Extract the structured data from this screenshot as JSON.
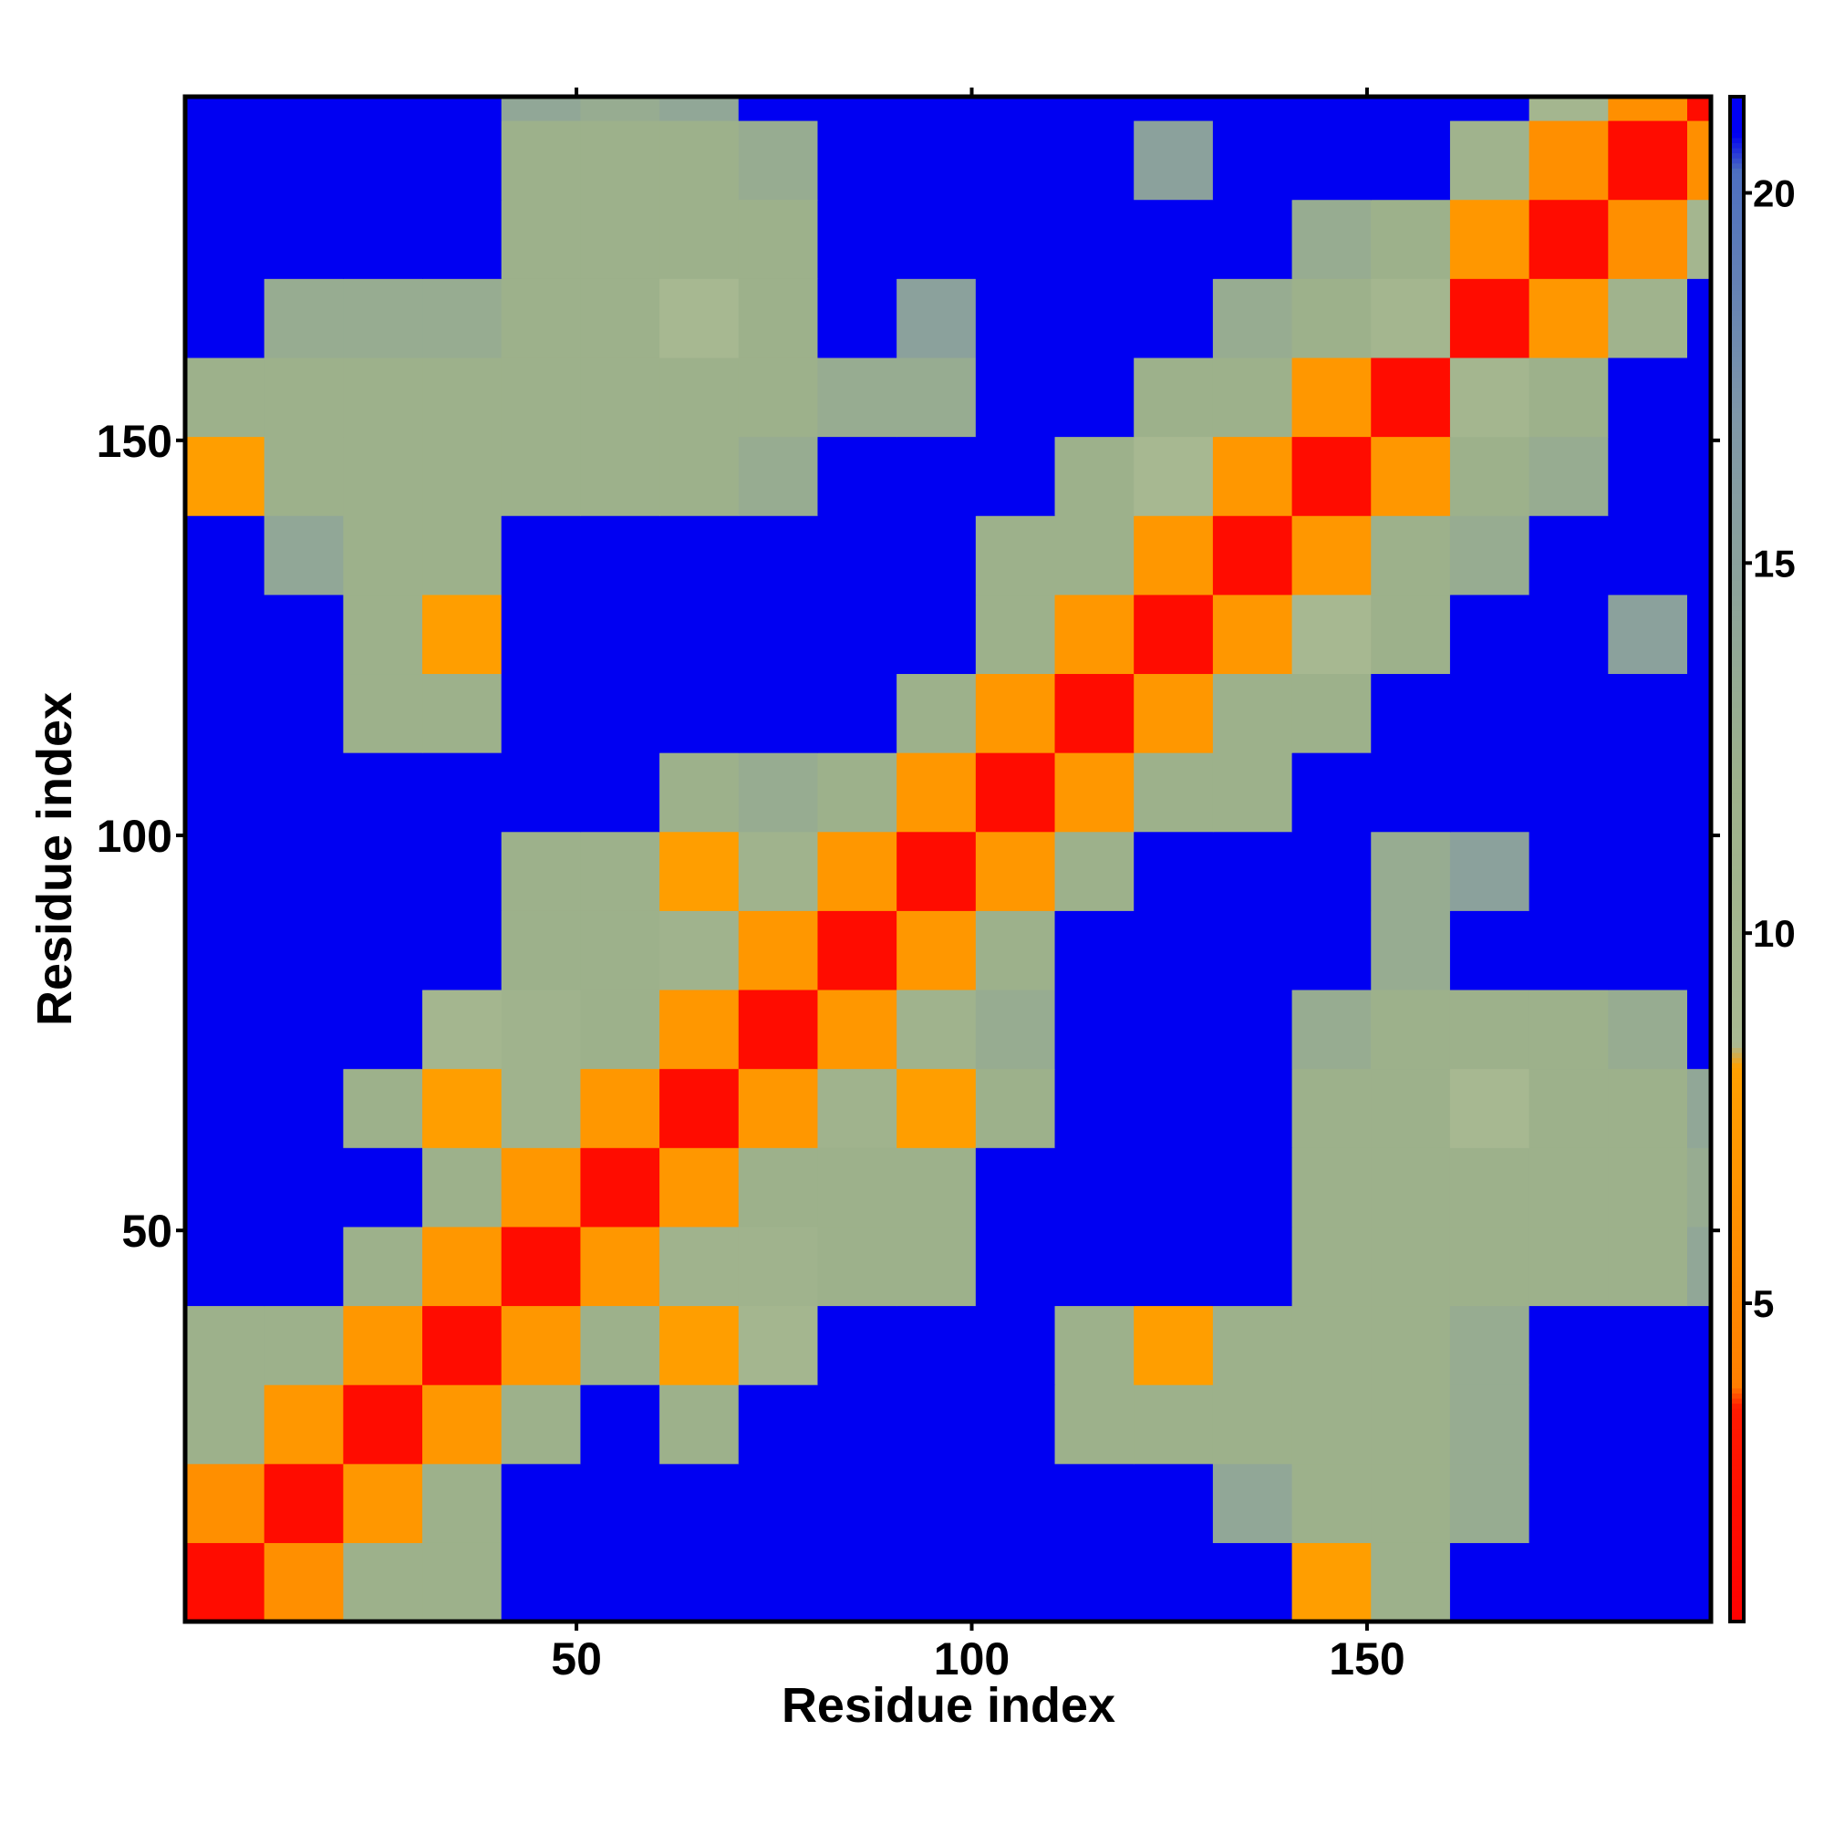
{
  "chart_data": {
    "type": "heatmap",
    "x_title": "Residue index",
    "y_title": "Residue index",
    "x_edges": [
      0.5,
      10.5,
      20.5,
      30.5,
      40.5,
      50.5,
      60.5,
      70.5,
      80.5,
      90.5,
      100.5,
      110.5,
      120.5,
      130.5,
      140.5,
      150.5,
      160.5,
      170.5,
      180.5,
      190.5,
      193.5
    ],
    "y_edges": [
      0.5,
      10.5,
      20.5,
      30.5,
      40.5,
      50.5,
      60.5,
      70.5,
      80.5,
      90.5,
      100.5,
      110.5,
      120.5,
      130.5,
      140.5,
      150.5,
      160.5,
      170.5,
      180.5,
      190.5,
      193.5
    ],
    "z": [
      [
        2,
        6,
        12,
        12,
        21,
        21,
        21,
        21,
        21,
        21,
        21,
        21,
        21,
        21,
        8,
        12,
        21,
        21,
        21,
        21
      ],
      [
        6,
        2,
        7,
        12,
        21,
        21,
        21,
        21,
        21,
        21,
        21,
        21,
        21,
        14,
        12,
        12,
        13,
        21,
        21,
        21
      ],
      [
        12,
        7,
        2,
        7,
        12,
        21,
        12,
        21,
        21,
        21,
        21,
        12,
        12,
        12,
        12,
        12,
        13,
        21,
        21,
        21
      ],
      [
        12,
        12,
        7,
        2,
        7,
        12,
        8,
        10,
        21,
        21,
        21,
        12,
        8,
        12,
        12,
        12,
        13,
        21,
        21,
        21
      ],
      [
        21,
        21,
        12,
        7,
        2,
        7,
        11,
        11,
        12,
        12,
        21,
        21,
        21,
        21,
        12,
        12,
        12,
        12,
        12,
        14
      ],
      [
        21,
        21,
        21,
        12,
        7,
        2,
        7,
        12,
        12,
        12,
        21,
        21,
        21,
        21,
        12,
        12,
        12,
        12,
        12,
        13
      ],
      [
        21,
        21,
        12,
        8,
        11,
        7,
        2,
        7,
        11,
        8,
        12,
        21,
        21,
        21,
        12,
        12,
        9,
        12,
        12,
        14
      ],
      [
        21,
        21,
        21,
        10,
        11,
        12,
        7,
        2,
        7,
        11,
        13,
        21,
        21,
        21,
        13,
        12,
        12,
        12,
        13,
        21
      ],
      [
        21,
        21,
        21,
        21,
        12,
        12,
        11,
        7,
        2,
        7,
        12,
        21,
        21,
        21,
        21,
        13,
        21,
        21,
        21,
        21
      ],
      [
        21,
        21,
        21,
        21,
        12,
        12,
        8,
        11,
        7,
        2,
        7,
        12,
        21,
        21,
        21,
        13,
        15,
        21,
        21,
        21
      ],
      [
        21,
        21,
        21,
        21,
        21,
        21,
        12,
        13,
        12,
        7,
        2,
        7,
        12,
        12,
        21,
        21,
        21,
        21,
        21,
        21
      ],
      [
        21,
        21,
        12,
        12,
        21,
        21,
        21,
        21,
        21,
        12,
        7,
        2,
        7,
        12,
        12,
        21,
        21,
        21,
        21,
        21
      ],
      [
        21,
        21,
        12,
        8,
        21,
        21,
        21,
        21,
        21,
        21,
        12,
        7,
        2,
        7,
        9,
        12,
        21,
        21,
        15,
        21
      ],
      [
        21,
        14,
        12,
        12,
        21,
        21,
        21,
        21,
        21,
        21,
        12,
        12,
        7,
        2,
        7,
        12,
        13,
        21,
        21,
        21
      ],
      [
        8,
        12,
        12,
        12,
        12,
        12,
        12,
        13,
        21,
        21,
        21,
        12,
        9,
        7,
        2,
        7,
        12,
        13,
        21,
        21
      ],
      [
        12,
        12,
        12,
        12,
        12,
        12,
        12,
        12,
        13,
        13,
        21,
        21,
        12,
        12,
        7,
        2,
        10,
        12,
        21,
        21
      ],
      [
        21,
        13,
        13,
        13,
        12,
        12,
        9,
        12,
        21,
        15,
        21,
        21,
        21,
        13,
        12,
        10,
        2,
        7,
        11,
        21
      ],
      [
        21,
        21,
        21,
        21,
        12,
        12,
        12,
        12,
        21,
        21,
        21,
        21,
        21,
        21,
        13,
        12,
        7,
        2,
        6,
        10
      ],
      [
        21,
        21,
        21,
        21,
        12,
        12,
        12,
        13,
        21,
        21,
        21,
        21,
        15,
        21,
        21,
        21,
        11,
        6,
        2,
        6
      ],
      [
        21,
        21,
        21,
        21,
        14,
        13,
        14,
        21,
        21,
        21,
        21,
        21,
        21,
        21,
        21,
        21,
        21,
        10,
        6,
        2
      ]
    ],
    "xlim": [
      0.5,
      193.5
    ],
    "ylim": [
      0.5,
      193.5
    ],
    "xticks": [
      50,
      100,
      150
    ],
    "yticks": [
      50,
      100,
      150
    ],
    "zlim": [
      0.7,
      21.3
    ],
    "zticks": [
      5,
      10,
      15,
      20
    ],
    "colorscale": [
      [
        0.7,
        "#ff0000"
      ],
      [
        3.6,
        "#ff1a00"
      ],
      [
        3.9,
        "#ff7f00"
      ],
      [
        8.2,
        "#ffa000"
      ],
      [
        8.5,
        "#a9b992"
      ],
      [
        12,
        "#9db18b"
      ],
      [
        17,
        "#7f97a8"
      ],
      [
        20.3,
        "#4d6fc0"
      ],
      [
        20.8,
        "#0000f2"
      ],
      [
        21.3,
        "#0000f2"
      ]
    ]
  }
}
